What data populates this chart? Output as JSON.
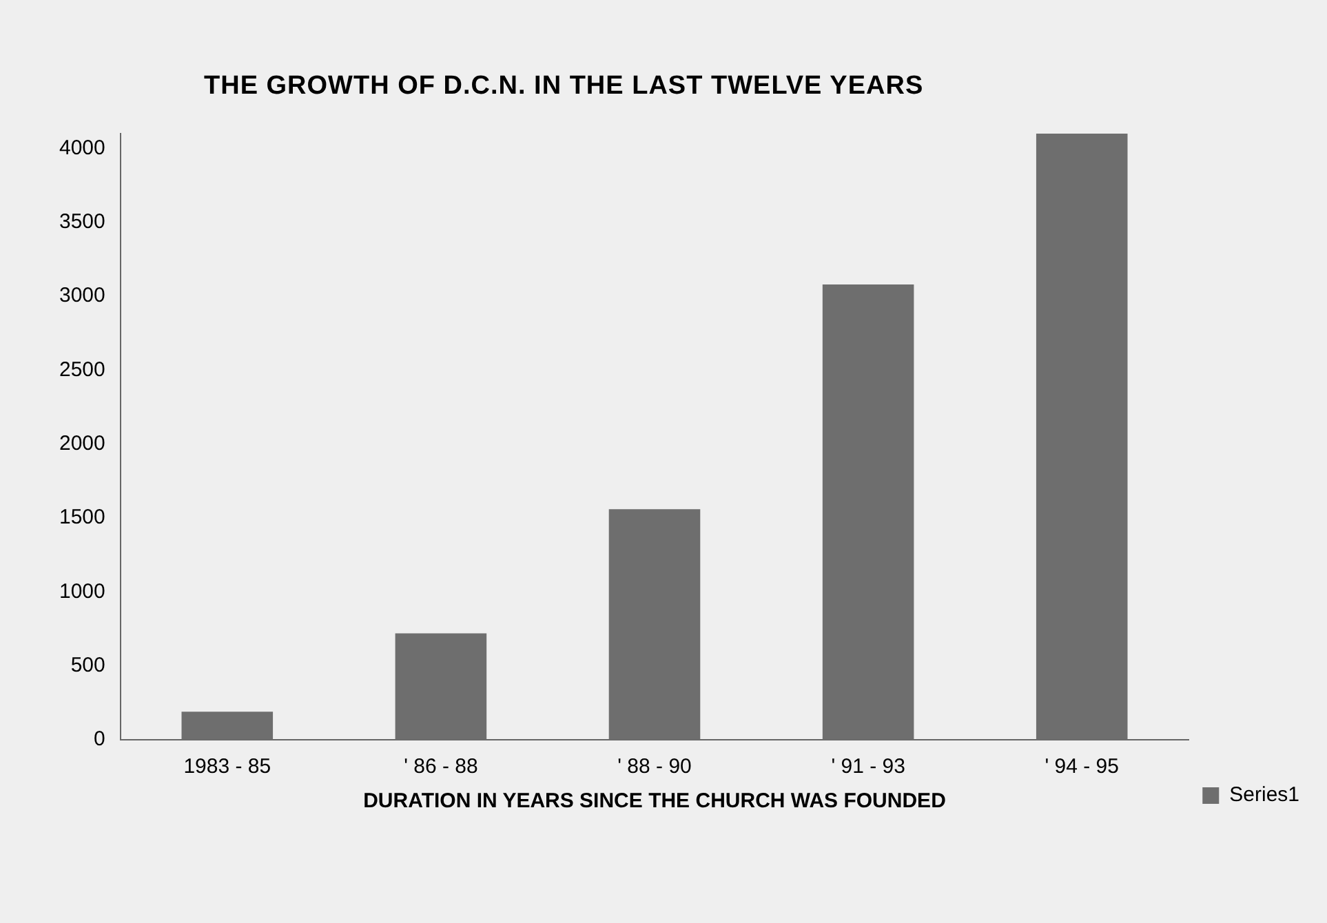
{
  "chart_data": {
    "type": "bar",
    "title": "THE GROWTH OF D.C.N. IN THE LAST TWELVE YEARS",
    "xlabel": "DURATION IN YEARS SINCE THE CHURCH WAS FOUNDED",
    "categories": [
      "1983 - 85",
      "' 86 - 88",
      "' 88 - 90",
      "' 91 - 93",
      "' 94 - 95"
    ],
    "series": [
      {
        "name": "Series1",
        "color": "#6e6e6e",
        "values": [
          190,
          720,
          1560,
          3080,
          4100
        ]
      }
    ],
    "ylim": [
      0,
      4100
    ],
    "yticks": [
      0,
      500,
      1000,
      1500,
      2000,
      2500,
      3000,
      3500,
      4000
    ],
    "grid": false,
    "legend": "right"
  }
}
